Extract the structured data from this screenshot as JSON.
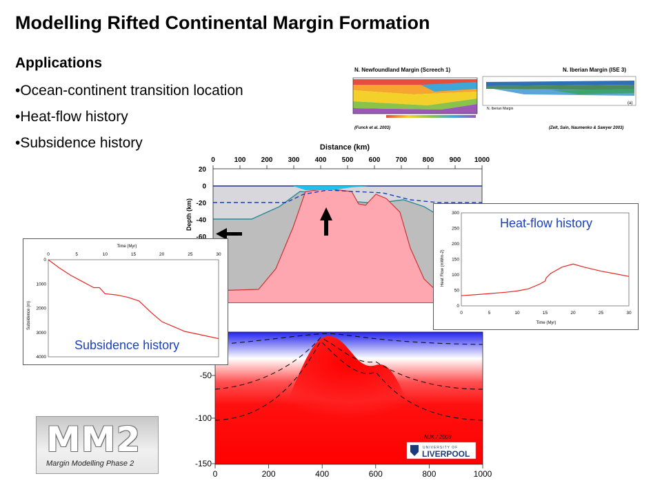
{
  "slide": {
    "title": "Modelling Rifted Continental Margin Formation",
    "applications_heading": "Applications",
    "bullets": [
      "•Ocean-continent transition location",
      "•Heat-flow history",
      "•Subsidence history"
    ]
  },
  "reference_panel": {
    "left_title": "N. Newfoundland Margin (Screech 1)",
    "left_citation": "(Funck et al. 2003)",
    "right_title": "N. Iberian Margin (ISE 3)",
    "right_sub": "N. Iberian Margin",
    "right_citation": "(Zelt, Sain, Naumenko & Sawyer 2003)",
    "right_tag": "(a)"
  },
  "cross_section": {
    "xlabel": "Distance (km)",
    "ylabel": "Depth (km)",
    "x_ticks": [
      "0",
      "100",
      "200",
      "300",
      "400",
      "500",
      "600",
      "700",
      "800",
      "900",
      "1000"
    ],
    "y_ticks": [
      "20",
      "0",
      "-20",
      "-40",
      "-60"
    ]
  },
  "temperature_section": {
    "x_ticks": [
      "0",
      "200",
      "400",
      "600",
      "800",
      "1000"
    ],
    "y_ticks": [
      "-50",
      "-100",
      "-150"
    ],
    "credit": "NJK / 2009",
    "university_top": "UNIVERSITY OF",
    "university_name": "LIVERPOOL"
  },
  "subsidence_inset": {
    "label": "Subsidence history",
    "chart_data": {
      "type": "line",
      "title": "",
      "xlabel": "Time (Myr)",
      "ylabel": "Subsidence (m)",
      "x_ticks": [
        "0",
        "5",
        "10",
        "15",
        "20",
        "25",
        "30"
      ],
      "y_ticks": [
        "0",
        "1000",
        "2000",
        "3000",
        "4000"
      ],
      "xlim": [
        0,
        30
      ],
      "ylim": [
        4000,
        0
      ],
      "color": "#e8231e",
      "x": [
        0,
        2,
        4,
        6,
        8,
        9,
        10,
        12,
        14,
        16,
        18,
        20,
        22,
        24,
        26,
        28,
        30
      ],
      "y": [
        0,
        350,
        650,
        900,
        1150,
        1150,
        1400,
        1450,
        1550,
        1700,
        2150,
        2550,
        2750,
        2950,
        3050,
        3150,
        3250
      ]
    }
  },
  "heatflow_inset": {
    "label": "Heat-flow history",
    "chart_data": {
      "type": "line",
      "title": "",
      "xlabel": "Time (Myr)",
      "ylabel": "Heat Flow (mWm-2)",
      "x_ticks": [
        "0",
        "5",
        "10",
        "15",
        "20",
        "25",
        "30"
      ],
      "y_ticks": [
        "0",
        "50",
        "100",
        "150",
        "200",
        "250",
        "300"
      ],
      "xlim": [
        0,
        30
      ],
      "ylim": [
        0,
        300
      ],
      "color": "#e8231e",
      "x": [
        0,
        4,
        8,
        10,
        12,
        14,
        15,
        15.2,
        16,
        18,
        20,
        22,
        25,
        28,
        30
      ],
      "y": [
        33,
        38,
        44,
        48,
        55,
        70,
        80,
        90,
        105,
        125,
        135,
        125,
        112,
        102,
        95
      ]
    }
  },
  "logo": {
    "big": "MM2",
    "subtitle": "Margin Modelling Phase 2"
  },
  "colors": {
    "continental_crust": "#ffa7b0",
    "lithosphere": "#bdbdbd",
    "upper_crust": "#d8d8dc",
    "water": "#1ec0f0",
    "curve": "#e8231e",
    "inset_label": "#1a3fc2"
  }
}
